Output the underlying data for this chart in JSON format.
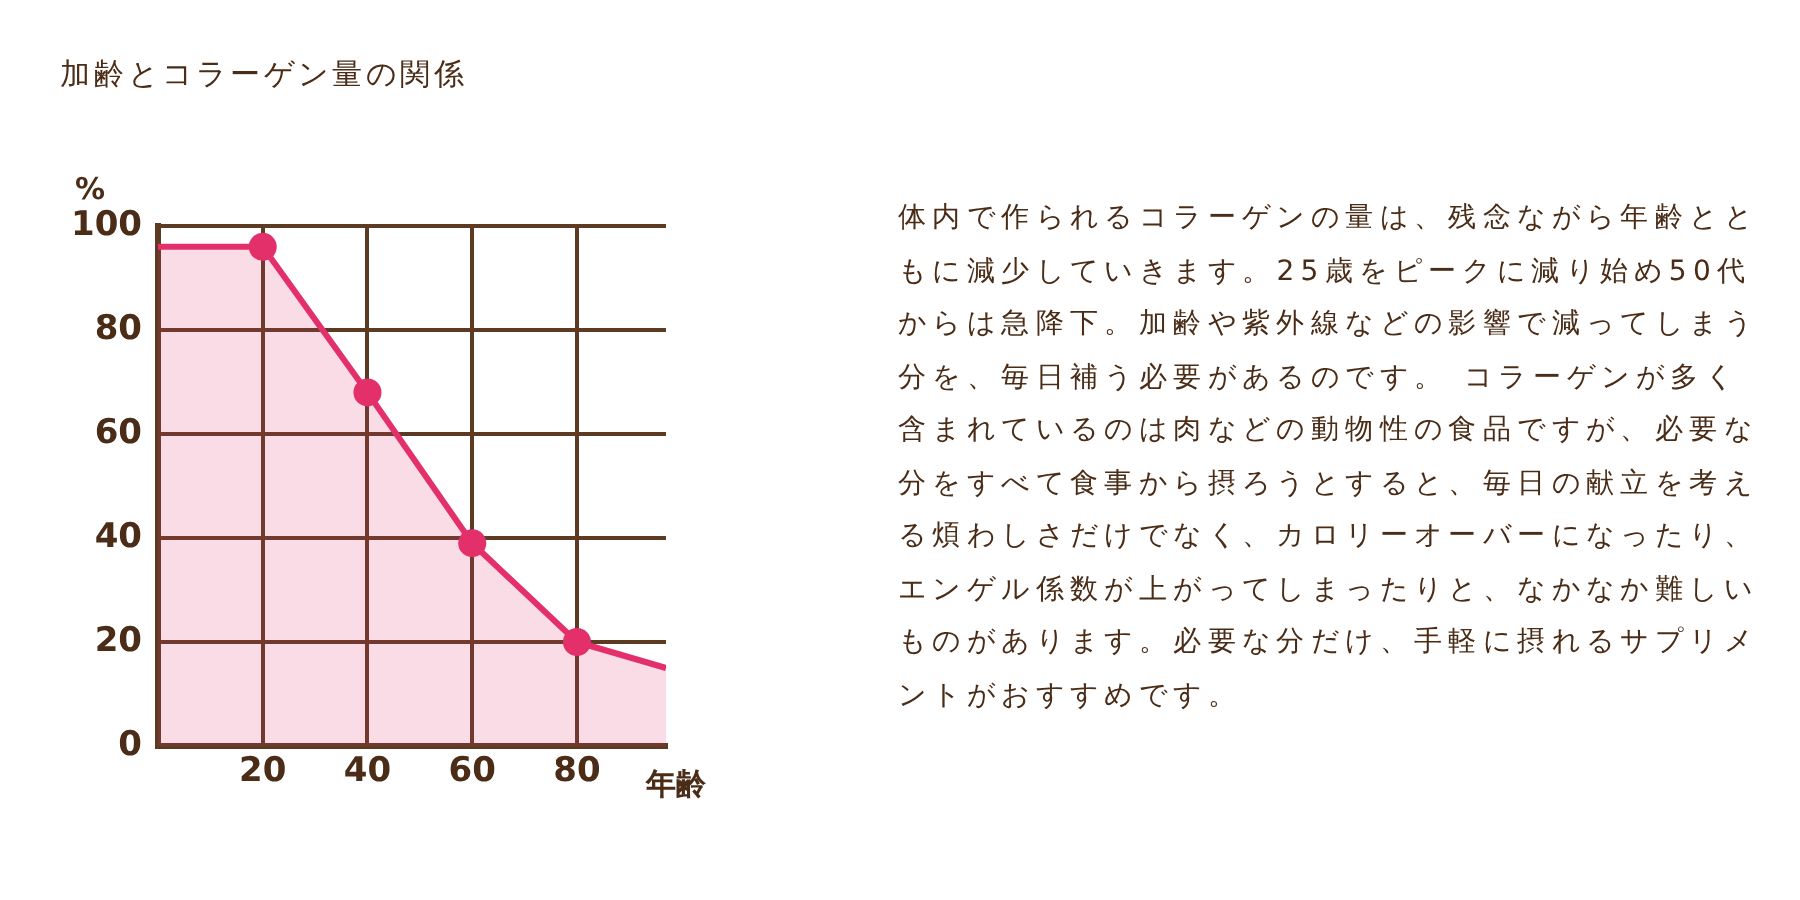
{
  "chart_data": {
    "type": "area",
    "title": "加齢とコラーゲン量の関係",
    "xlabel": "年齢",
    "ylabel": "%",
    "x": [
      0,
      20,
      40,
      60,
      80,
      97
    ],
    "series": [
      {
        "color": "#e3306b",
        "marker": "none",
        "values": [
          96,
          96,
          68,
          39,
          20,
          15
        ]
      },
      {
        "type": "scatter",
        "color": "#e3306b",
        "x": [
          20,
          40,
          60,
          80
        ],
        "values": [
          96,
          68,
          39,
          20
        ]
      }
    ],
    "marker": "circle",
    "xlim": [
      0,
      97
    ],
    "xticks": [
      20,
      40,
      60,
      80
    ],
    "ylim": [
      0,
      100
    ],
    "yticks": [
      0,
      20,
      40,
      60,
      80,
      100
    ],
    "grid": true,
    "legend": false,
    "annotations": [
      "体内で作られるコラーゲンの量は、残念ながら年齢とともに減少していきます。25歳をピークに減り始め50代からは急降下。加齢や紫外線などの影響で減ってしまう分を、毎日補う必要があるのです。 コラーゲンが多く含まれているのは肉などの動物性の食品ですが、必要な分をすべて食事から摂ろうとすると、毎日の献立を考える煩わしさだけでなく、カロリーオーバーになったり、エンゲル係数が上がってしまったりと、なかなか難しいものがあります。必要な分だけ、手軽に摂れるサプリメントがおすすめです。"
    ]
  }
}
